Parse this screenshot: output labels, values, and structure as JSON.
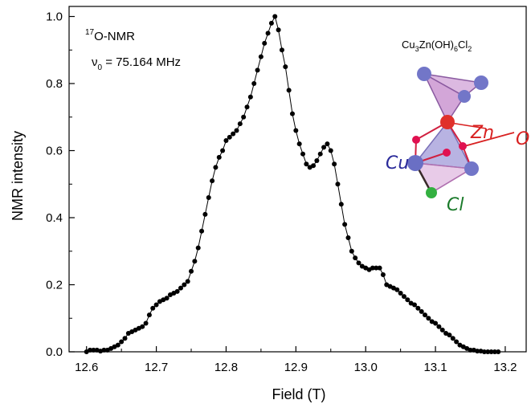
{
  "chart_data": {
    "type": "line",
    "title": "",
    "xlabel": "Field (T)",
    "ylabel": "NMR intensity",
    "xlim": [
      12.575,
      13.23
    ],
    "ylim": [
      0.0,
      1.03
    ],
    "x_ticks": [
      12.6,
      12.7,
      12.8,
      12.9,
      13.0,
      13.1,
      13.2
    ],
    "x_tick_labels": [
      "12.6",
      "12.7",
      "12.8",
      "12.9",
      "13.0",
      "13.1",
      "13.2"
    ],
    "y_ticks": [
      0.0,
      0.2,
      0.4,
      0.6,
      0.8,
      1.0
    ],
    "y_tick_labels": [
      "0.0",
      "0.2",
      "0.4",
      "0.6",
      "0.8",
      "1.0"
    ],
    "grid": false,
    "marker": "filled-circle",
    "line_color": "#000000",
    "series": [
      {
        "x": [
          12.6,
          12.605,
          12.61,
          12.615,
          12.62,
          12.625,
          12.63,
          12.635,
          12.64,
          12.645,
          12.65,
          12.655,
          12.66,
          12.665,
          12.67,
          12.675,
          12.68,
          12.685,
          12.69,
          12.695,
          12.7,
          12.705,
          12.71,
          12.715,
          12.72,
          12.725,
          12.73,
          12.735,
          12.74,
          12.745,
          12.75,
          12.755,
          12.76,
          12.765,
          12.77,
          12.775,
          12.78,
          12.785,
          12.79,
          12.795,
          12.8,
          12.805,
          12.81,
          12.815,
          12.82,
          12.825,
          12.83,
          12.835,
          12.84,
          12.845,
          12.85,
          12.855,
          12.86,
          12.865,
          12.87,
          12.875,
          12.88,
          12.885,
          12.89,
          12.895,
          12.9,
          12.905,
          12.91,
          12.915,
          12.92,
          12.925,
          12.93,
          12.935,
          12.94,
          12.945,
          12.95,
          12.955,
          12.96,
          12.965,
          12.97,
          12.975,
          12.98,
          12.985,
          12.99,
          12.995,
          13.0,
          13.005,
          13.01,
          13.015,
          13.02,
          13.025,
          13.03,
          13.035,
          13.04,
          13.045,
          13.05,
          13.055,
          13.06,
          13.065,
          13.07,
          13.075,
          13.08,
          13.085,
          13.09,
          13.095,
          13.1,
          13.105,
          13.11,
          13.115,
          13.12,
          13.125,
          13.13,
          13.135,
          13.14,
          13.145,
          13.15,
          13.155,
          13.16,
          13.165,
          13.17,
          13.175,
          13.18,
          13.185,
          13.19
        ],
        "y": [
          0.0,
          0.005,
          0.005,
          0.005,
          0.002,
          0.005,
          0.005,
          0.01,
          0.015,
          0.02,
          0.03,
          0.04,
          0.055,
          0.06,
          0.065,
          0.07,
          0.075,
          0.085,
          0.11,
          0.13,
          0.14,
          0.15,
          0.155,
          0.16,
          0.17,
          0.175,
          0.18,
          0.19,
          0.2,
          0.21,
          0.24,
          0.27,
          0.31,
          0.36,
          0.41,
          0.46,
          0.51,
          0.55,
          0.58,
          0.6,
          0.63,
          0.64,
          0.65,
          0.66,
          0.68,
          0.7,
          0.73,
          0.76,
          0.8,
          0.84,
          0.88,
          0.92,
          0.95,
          0.98,
          1.0,
          0.96,
          0.9,
          0.85,
          0.78,
          0.71,
          0.66,
          0.62,
          0.59,
          0.56,
          0.55,
          0.555,
          0.57,
          0.59,
          0.61,
          0.62,
          0.6,
          0.56,
          0.5,
          0.44,
          0.38,
          0.34,
          0.3,
          0.28,
          0.265,
          0.255,
          0.25,
          0.245,
          0.25,
          0.25,
          0.25,
          0.23,
          0.2,
          0.195,
          0.19,
          0.185,
          0.175,
          0.165,
          0.155,
          0.145,
          0.14,
          0.13,
          0.12,
          0.11,
          0.1,
          0.09,
          0.085,
          0.075,
          0.065,
          0.055,
          0.05,
          0.04,
          0.03,
          0.02,
          0.015,
          0.01,
          0.005,
          0.005,
          0.002,
          0.002,
          0.0,
          0.0,
          0.0,
          0.0,
          0.0
        ]
      }
    ],
    "annotations": {
      "nucleus_sup": "17",
      "nucleus_text": "O-NMR",
      "nu_symbol": "ν",
      "nu_sub": "0",
      "nu_value": " = 75.164 MHz"
    }
  },
  "inset": {
    "formula": {
      "p1": "Cu",
      "s1": "3",
      "p2": "Zn(OH)",
      "s2": "6",
      "p3": "Cl",
      "s3": "2"
    },
    "label_cu": "Cu",
    "label_zn": "Zn",
    "label_o": "O",
    "label_cl": "Cl",
    "colors": {
      "cu": "#6a6fc4",
      "zn": "#d93030",
      "o": "#e01020",
      "cl": "#2a9a3a",
      "polyhedron": "#c080c8"
    }
  }
}
